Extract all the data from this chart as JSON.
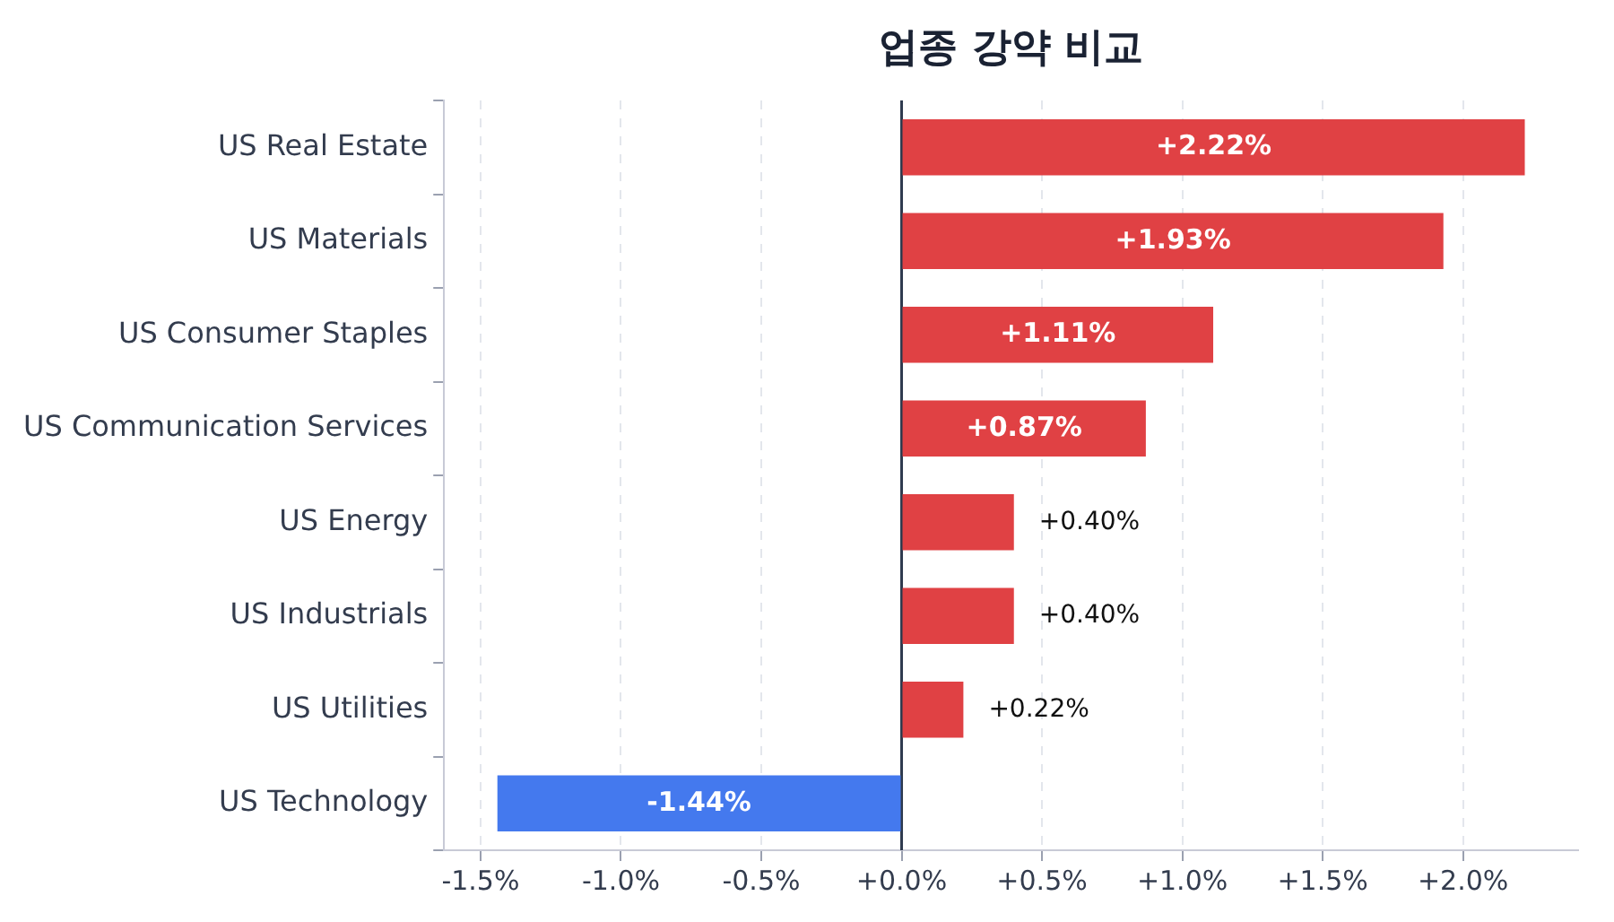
{
  "chart_data": {
    "type": "bar",
    "orientation": "horizontal",
    "title": "업종 강약 비교",
    "categories": [
      "US Real Estate",
      "US Materials",
      "US Consumer Staples",
      "US Communication Services",
      "US Energy",
      "US Industrials",
      "US Utilities",
      "US Technology"
    ],
    "values": [
      2.22,
      1.93,
      1.11,
      0.87,
      0.4,
      0.4,
      0.22,
      -1.44
    ],
    "colors": [
      "#e04144",
      "#e04144",
      "#e04144",
      "#e04144",
      "#e04144",
      "#e04144",
      "#e04144",
      "#4479ee"
    ],
    "value_labels": [
      "+2.22%",
      "+1.93%",
      "+1.11%",
      "+0.87%",
      "+0.40%",
      "+0.40%",
      "+0.22%",
      "-1.44%"
    ],
    "xlim": [
      -1.63,
      2.41
    ],
    "xticks": [
      {
        "value": -1.5,
        "label": "-1.5%"
      },
      {
        "value": -1.0,
        "label": "-1.0%"
      },
      {
        "value": -0.5,
        "label": "-0.5%"
      },
      {
        "value": 0,
        "label": "+0.0%"
      },
      {
        "value": 0.5,
        "label": "+0.5%"
      },
      {
        "value": 1.0,
        "label": "+1.0%"
      },
      {
        "value": 1.5,
        "label": "+1.5%"
      },
      {
        "value": 2.0,
        "label": "+2.0%"
      }
    ],
    "grid": "x",
    "legend": false,
    "ref_lines": [
      {
        "axis": "x",
        "value": 0,
        "color": "#2e3a4e"
      }
    ]
  }
}
